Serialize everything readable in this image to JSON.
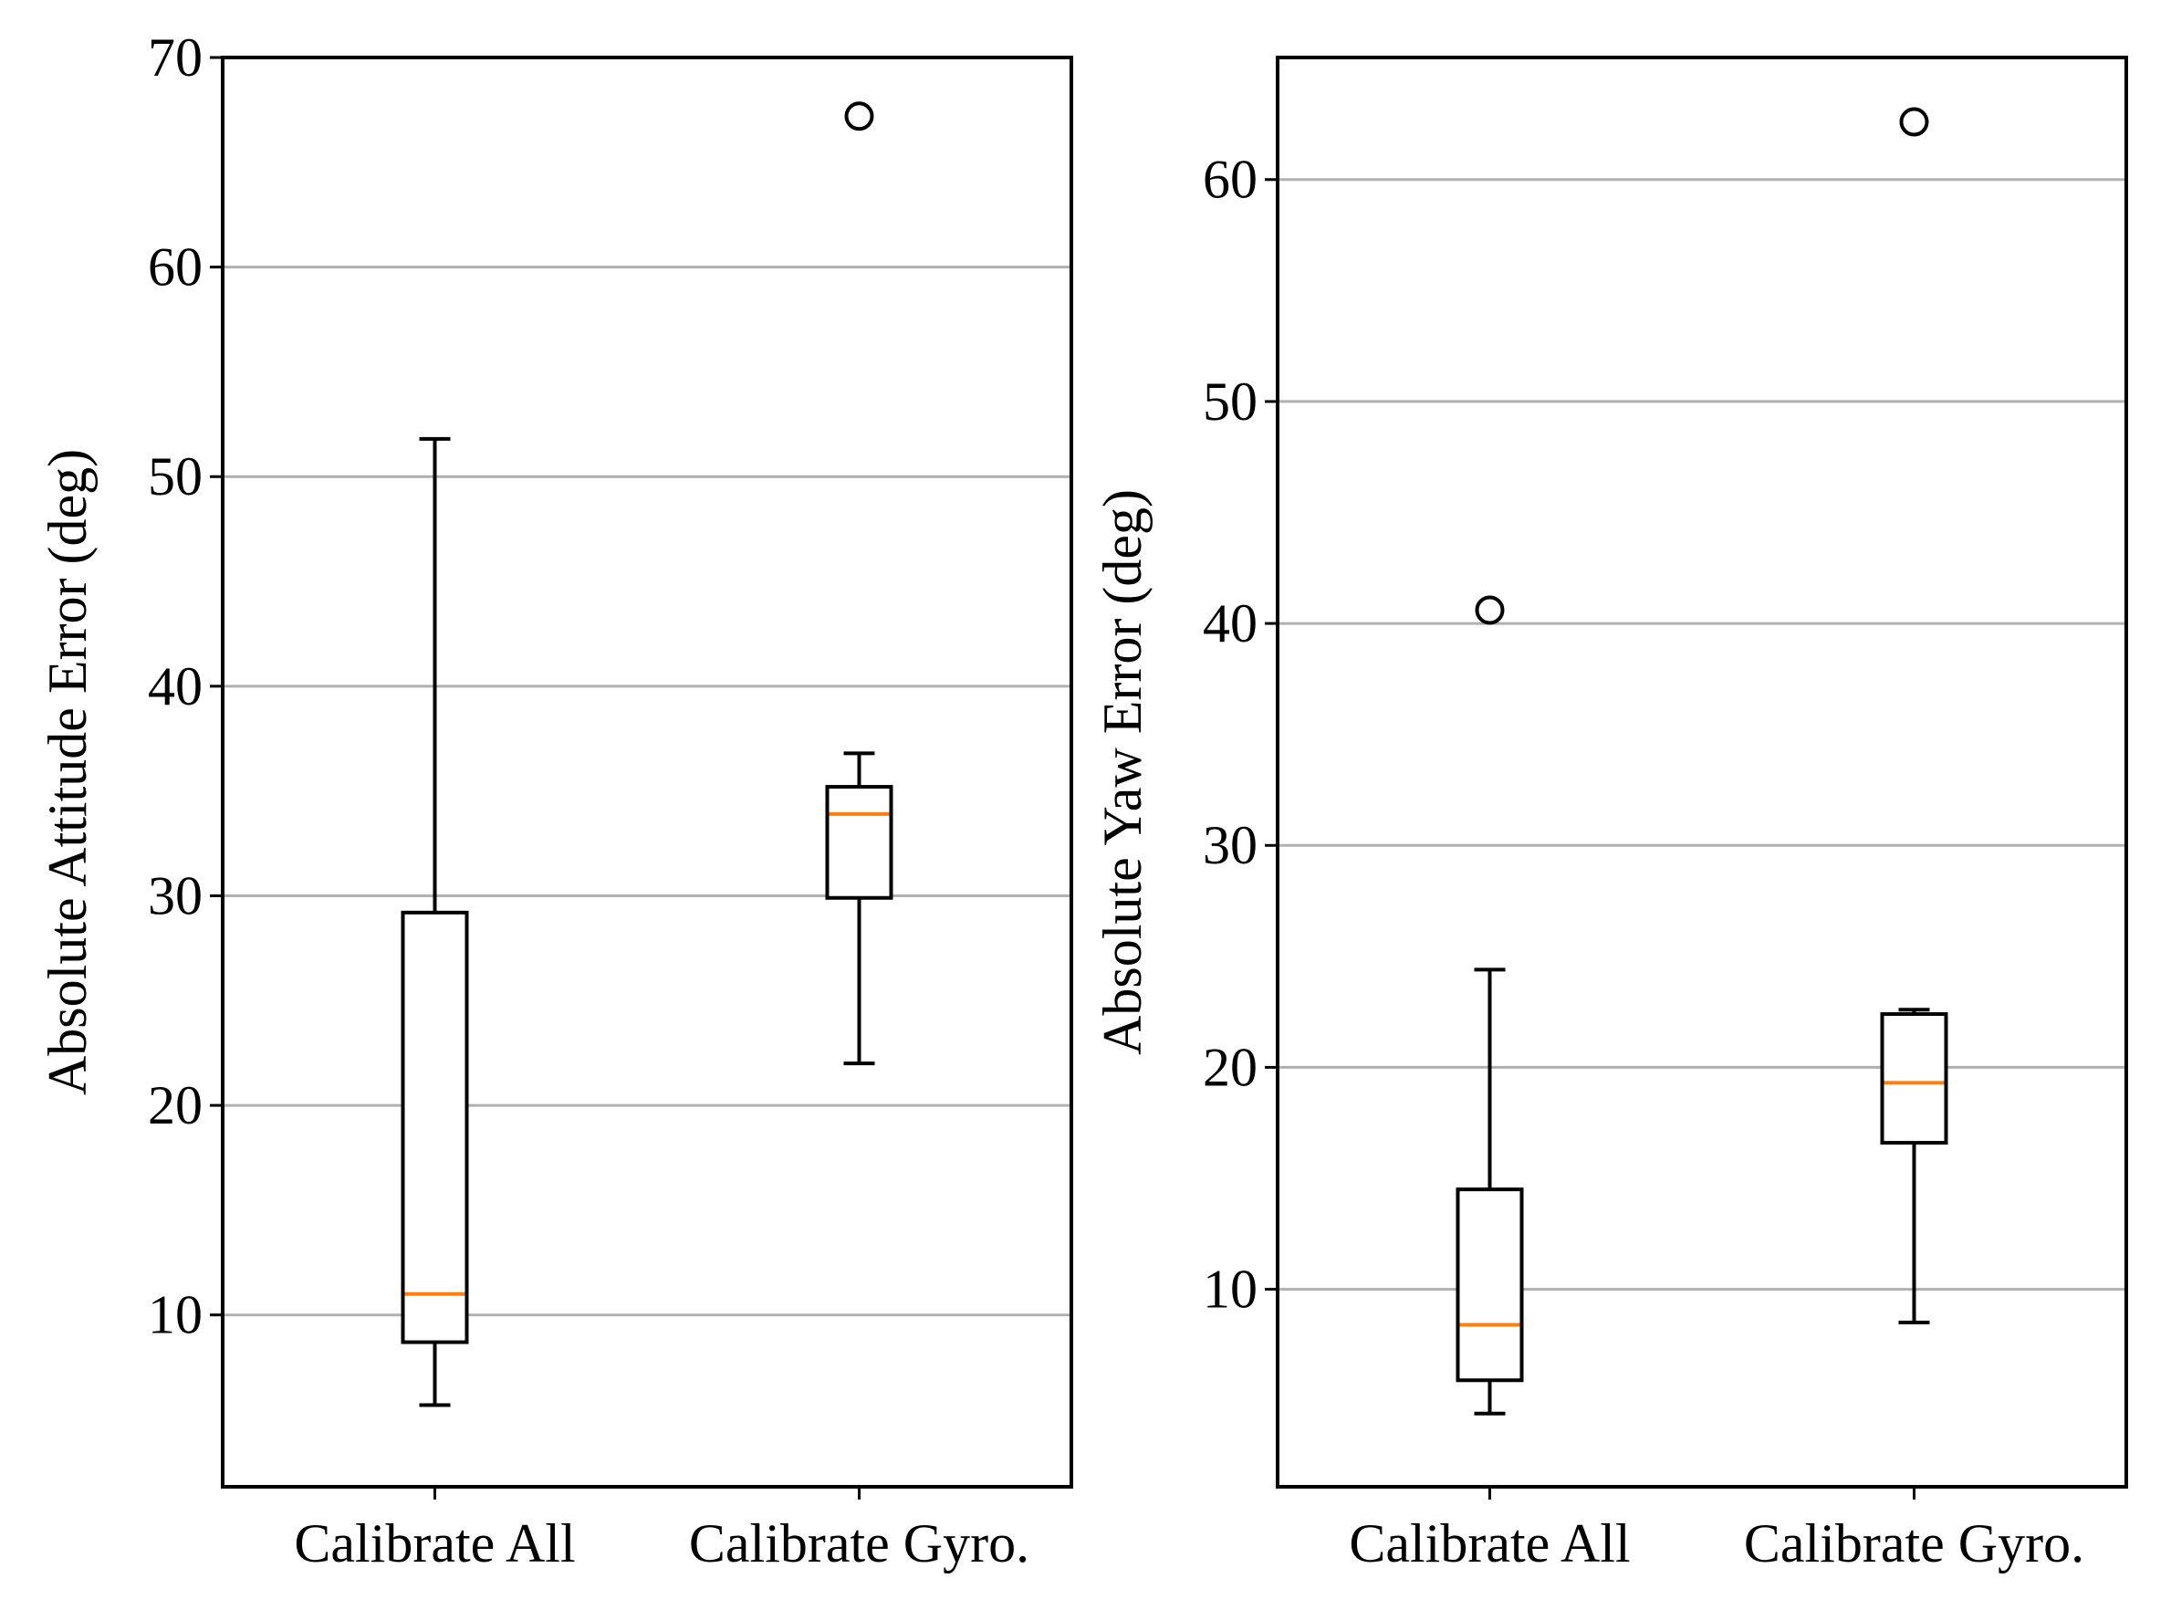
{
  "chart_data": [
    {
      "type": "box",
      "title": "",
      "xlabel": "",
      "ylabel": "Absolute Attitude Error (deg)",
      "ylim": [
        1.8,
        70
      ],
      "yticks": [
        10,
        20,
        30,
        40,
        50,
        60,
        70
      ],
      "ytick_labels": [
        "10",
        "20",
        "30",
        "40",
        "50",
        "60",
        "70"
      ],
      "grid": "horizontal",
      "categories": [
        "Calibrate All",
        "Calibrate Gyro."
      ],
      "boxes": [
        {
          "name": "Calibrate All",
          "whisker_low": 5.7,
          "q1": 8.7,
          "median": 11.0,
          "q3": 29.2,
          "whisker_high": 51.8,
          "outliers": []
        },
        {
          "name": "Calibrate Gyro.",
          "whisker_low": 22.0,
          "q1": 29.9,
          "median": 33.9,
          "q3": 35.2,
          "whisker_high": 36.8,
          "outliers": [
            67.2
          ]
        }
      ]
    },
    {
      "type": "box",
      "title": "",
      "xlabel": "",
      "ylabel": "Absolute Yaw Error (deg)",
      "ylim": [
        1.1,
        65.5
      ],
      "yticks": [
        10,
        20,
        30,
        40,
        50,
        60
      ],
      "ytick_labels": [
        "10",
        "20",
        "30",
        "40",
        "50",
        "60"
      ],
      "grid": "horizontal",
      "categories": [
        "Calibrate All",
        "Calibrate Gyro."
      ],
      "boxes": [
        {
          "name": "Calibrate All",
          "whisker_low": 4.4,
          "q1": 5.9,
          "median": 8.4,
          "q3": 14.5,
          "whisker_high": 24.4,
          "outliers": [
            40.6
          ]
        },
        {
          "name": "Calibrate Gyro.",
          "whisker_low": 8.5,
          "q1": 16.6,
          "median": 19.3,
          "q3": 22.4,
          "whisker_high": 22.6,
          "outliers": [
            62.6
          ]
        }
      ]
    }
  ],
  "colors": {
    "box": "#000000",
    "median": "#ff7f0e",
    "grid": "#b0b0b0",
    "background": "#ffffff"
  }
}
